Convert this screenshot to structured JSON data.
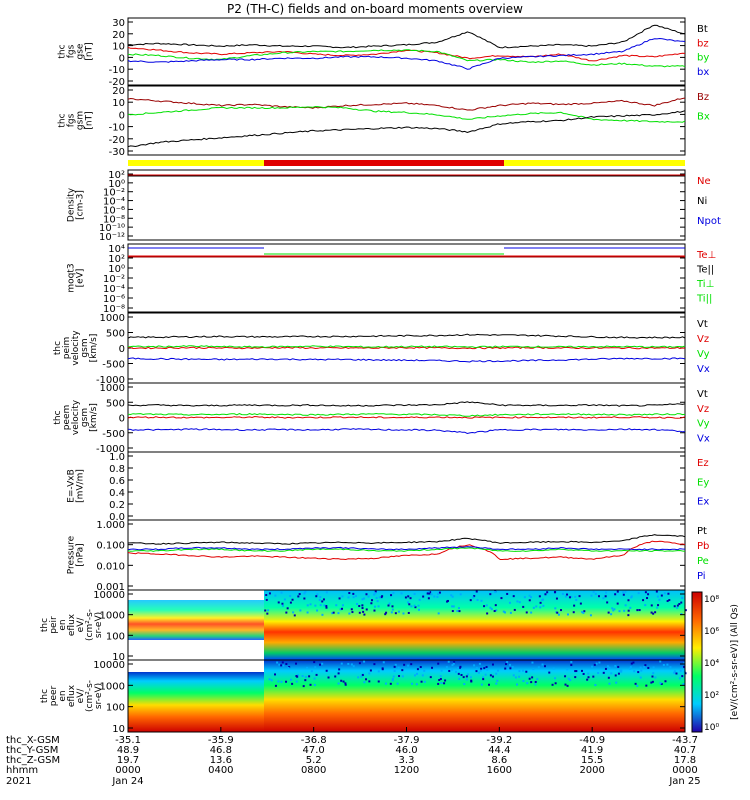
{
  "title": "P2 (TH-C) fields and on-board moments overview",
  "colors": {
    "black": "#000000",
    "red": "#e00000",
    "green": "#00e000",
    "blue": "#0000e0",
    "darkred": "#990000",
    "yellow": "#ffff00"
  },
  "panels": [
    {
      "id": "fgs-gse",
      "ylabel": [
        "thc",
        "fgs",
        "gse",
        "[nT]"
      ],
      "ticks": [
        "30",
        "20",
        "10",
        "0",
        "-10",
        "-20"
      ],
      "yrange": [
        -20,
        30
      ],
      "series": [
        {
          "name": "Bt",
          "color": "#000000",
          "values": [
            10,
            11,
            10,
            9,
            10,
            9,
            9,
            8,
            9,
            10,
            12,
            20,
            8,
            9,
            10,
            9,
            12,
            25,
            18
          ]
        },
        {
          "name": "bz",
          "color": "#e00000",
          "values": [
            8,
            6,
            4,
            3,
            4,
            5,
            3,
            2,
            3,
            6,
            4,
            0,
            2,
            1,
            3,
            -2,
            2,
            1,
            4
          ]
        },
        {
          "name": "by",
          "color": "#00e000",
          "values": [
            3,
            2,
            0,
            -1,
            2,
            4,
            5,
            5,
            6,
            6,
            5,
            -2,
            -1,
            -3,
            -2,
            -5,
            -4,
            -6,
            -6
          ]
        },
        {
          "name": "bx",
          "color": "#0000e0",
          "values": [
            -2,
            -3,
            -2,
            -1,
            -1,
            0,
            0,
            1,
            1,
            0,
            -2,
            -8,
            0,
            1,
            2,
            3,
            5,
            15,
            12
          ]
        }
      ]
    },
    {
      "id": "fgs-gsm",
      "ylabel": [
        "thc",
        "fgs",
        "gsm",
        "[nT]"
      ],
      "ticks": [
        "20",
        "10",
        "0",
        "-10",
        "-20",
        "-30"
      ],
      "yrange": [
        -35,
        25
      ],
      "series": [
        {
          "name": "Bz",
          "color": "#990000",
          "values": [
            14,
            12,
            10,
            8,
            9,
            7,
            6,
            8,
            9,
            10,
            8,
            4,
            8,
            10,
            9,
            10,
            12,
            8,
            15
          ]
        },
        {
          "name": "Bx",
          "color": "#00e000",
          "values": [
            0,
            2,
            4,
            6,
            6,
            6,
            7,
            6,
            3,
            2,
            0,
            -4,
            -1,
            1,
            2,
            -4,
            -5,
            -6,
            -6
          ]
        },
        {
          "name": "",
          "color": "#000000",
          "values": [
            -28,
            -24,
            -22,
            -20,
            -18,
            -16,
            -14,
            -13,
            -12,
            -11,
            -12,
            -15,
            -8,
            -6,
            -5,
            -2,
            -1,
            0,
            3
          ]
        }
      ]
    },
    {
      "id": "density",
      "ylabel": [
        "Density",
        "[cm-3]"
      ],
      "ticks": [
        "10²",
        "10⁰",
        "10⁻²",
        "10⁻⁴",
        "10⁻⁶",
        "10⁻⁸",
        "10⁻¹⁰",
        "10⁻¹²"
      ],
      "series": [
        {
          "name": "Ne",
          "color": "#e00000"
        },
        {
          "name": "Ni",
          "color": "#000000"
        },
        {
          "name": "Npot",
          "color": "#0000e0"
        }
      ]
    },
    {
      "id": "temp",
      "ylabel": [
        "moqt3",
        "[eV]"
      ],
      "ticks": [
        "10⁴",
        "10²",
        "10⁰",
        "10⁻²",
        "10⁻⁴",
        "10⁻⁶",
        "10⁻⁸"
      ],
      "series": [
        {
          "name": "Te⊥",
          "color": "#e00000"
        },
        {
          "name": "Te||",
          "color": "#000000"
        },
        {
          "name": "Ti⊥",
          "color": "#00e000"
        },
        {
          "name": "Ti||",
          "color": "#00e000"
        }
      ]
    },
    {
      "id": "peim-velocity",
      "ylabel": [
        "thc",
        "peim",
        "velocity",
        "gsm",
        "[km/s]"
      ],
      "ticks": [
        "1000",
        "500",
        "0",
        "-500",
        "-1000"
      ],
      "yrange": [
        -1000,
        1000
      ],
      "series": [
        {
          "name": "Vt",
          "color": "#000000",
          "values": [
            300,
            310,
            320,
            330,
            320,
            320,
            330,
            330,
            340,
            350,
            360,
            380,
            370,
            360,
            340,
            320,
            300,
            300,
            300
          ]
        },
        {
          "name": "Vz",
          "color": "#e00000",
          "values": [
            0,
            0,
            10,
            0,
            0,
            10,
            0,
            0,
            0,
            10,
            0,
            0,
            0,
            10,
            0,
            0,
            0,
            0,
            0
          ]
        },
        {
          "name": "Vy",
          "color": "#00e000",
          "values": [
            40,
            40,
            50,
            40,
            30,
            40,
            50,
            40,
            30,
            40,
            40,
            30,
            40,
            40,
            30,
            40,
            40,
            30,
            40
          ]
        },
        {
          "name": "Vx",
          "color": "#0000e0",
          "values": [
            -300,
            -310,
            -320,
            -330,
            -320,
            -320,
            -330,
            -330,
            -340,
            -350,
            -360,
            -380,
            -370,
            -360,
            -340,
            -320,
            -300,
            -300,
            -300
          ]
        }
      ]
    },
    {
      "id": "peem-velocity",
      "ylabel": [
        "thc",
        "peem",
        "velocity",
        "gsm",
        "[km/s]"
      ],
      "ticks": [
        "1000",
        "500",
        "0",
        "-500",
        "-1000"
      ],
      "yrange": [
        -1000,
        1000
      ],
      "series": [
        {
          "name": "Vt",
          "color": "#000000",
          "values": [
            350,
            360,
            340,
            350,
            360,
            350,
            360,
            340,
            350,
            360,
            370,
            450,
            360,
            350,
            350,
            360,
            340,
            350,
            400
          ]
        },
        {
          "name": "Vz",
          "color": "#e00000",
          "values": [
            0,
            10,
            0,
            0,
            10,
            0,
            0,
            10,
            0,
            0,
            10,
            0,
            0,
            10,
            0,
            0,
            10,
            0,
            0
          ]
        },
        {
          "name": "Vy",
          "color": "#00e000",
          "values": [
            100,
            90,
            80,
            90,
            100,
            90,
            80,
            90,
            100,
            90,
            80,
            50,
            80,
            90,
            100,
            90,
            80,
            90,
            100
          ]
        },
        {
          "name": "Vx",
          "color": "#0000e0",
          "values": [
            -350,
            -360,
            -340,
            -350,
            -360,
            -350,
            -360,
            -340,
            -350,
            -360,
            -370,
            -450,
            -360,
            -350,
            -350,
            -360,
            -340,
            -350,
            -400
          ]
        }
      ]
    },
    {
      "id": "efield",
      "ylabel": [
        "E=-VxB",
        "[mV/m]"
      ],
      "ticks": [
        "1.0",
        "0.8",
        "0.6",
        "0.4",
        "0.2",
        "0.0"
      ],
      "series": [
        {
          "name": "Ez",
          "color": "#e00000"
        },
        {
          "name": "Ey",
          "color": "#00e000"
        },
        {
          "name": "Ex",
          "color": "#0000e0"
        }
      ]
    },
    {
      "id": "pressure",
      "ylabel": [
        "Pressure",
        "[nPa]"
      ],
      "ticks": [
        "1.000",
        "0.100",
        "0.010",
        "0.001"
      ],
      "series": [
        {
          "name": "Pt",
          "color": "#000000",
          "values": [
            0.12,
            0.11,
            0.12,
            0.13,
            0.12,
            0.11,
            0.12,
            0.13,
            0.12,
            0.13,
            0.14,
            0.2,
            0.12,
            0.13,
            0.14,
            0.13,
            0.15,
            0.3,
            0.25
          ]
        },
        {
          "name": "Pb",
          "color": "#e00000",
          "values": [
            0.04,
            0.035,
            0.03,
            0.025,
            0.028,
            0.025,
            0.022,
            0.02,
            0.022,
            0.03,
            0.035,
            0.1,
            0.02,
            0.022,
            0.025,
            0.02,
            0.03,
            0.15,
            0.1
          ]
        },
        {
          "name": "Pe",
          "color": "#00e000",
          "values": [
            0.05,
            0.05,
            0.06,
            0.06,
            0.05,
            0.05,
            0.06,
            0.06,
            0.05,
            0.05,
            0.06,
            0.07,
            0.05,
            0.05,
            0.06,
            0.05,
            0.05,
            0.05,
            0.05
          ]
        },
        {
          "name": "Pi",
          "color": "#0000e0",
          "values": [
            0.06,
            0.06,
            0.07,
            0.07,
            0.06,
            0.06,
            0.07,
            0.07,
            0.06,
            0.06,
            0.07,
            0.08,
            0.06,
            0.06,
            0.07,
            0.06,
            0.06,
            0.06,
            0.06
          ]
        }
      ]
    },
    {
      "id": "peir-eflux",
      "ylabel": [
        "thc",
        "peir",
        "en",
        "eflux",
        "eV/",
        "(cm²-s-",
        "sr-eV)"
      ],
      "ticks": [
        "10000",
        "1000",
        "100",
        "10"
      ]
    },
    {
      "id": "peer-eflux",
      "ylabel": [
        "thc",
        "peer",
        "en",
        "eflux",
        "eV/",
        "(cm²-s-",
        "sr-eV)"
      ],
      "ticks": [
        "10000",
        "1000",
        "100",
        "10"
      ]
    }
  ],
  "colorbar": {
    "label": "[eV/(cm²-s-sr-eV)] (All Qs)",
    "ticks": [
      "10⁸",
      "10⁶",
      "10⁴",
      "10²",
      "10⁰"
    ]
  },
  "xaxis": {
    "rows": [
      {
        "label": "thc_X-GSM",
        "values": [
          "-35.1",
          "-35.9",
          "-36.8",
          "-37.9",
          "-39.2",
          "-40.9",
          "-43.7"
        ]
      },
      {
        "label": "thc_Y-GSM",
        "values": [
          "48.9",
          "46.8",
          "47.0",
          "46.0",
          "44.4",
          "41.9",
          "40.7"
        ]
      },
      {
        "label": "thc_Z-GSM",
        "values": [
          "19.7",
          "13.6",
          "5.2",
          "3.3",
          "8.6",
          "15.5",
          "17.8"
        ]
      },
      {
        "label": "hhmm",
        "values": [
          "0000",
          "0400",
          "0800",
          "1200",
          "1600",
          "2000",
          "0000"
        ]
      }
    ],
    "year": "2021",
    "date_start": "Jan 24",
    "date_end": "Jan 25"
  }
}
